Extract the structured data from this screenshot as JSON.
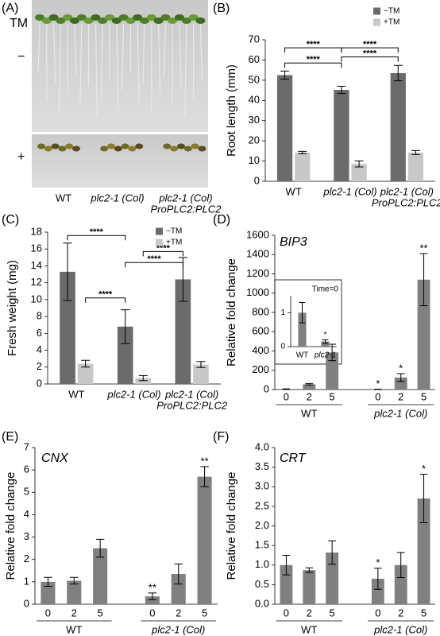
{
  "photo_panel": {
    "label": "(A)",
    "treatment": "TM",
    "rows": [
      "−",
      "+"
    ],
    "genotypes": [
      [
        "WT"
      ],
      [
        "plc2-1 (Col)"
      ],
      [
        "plc2-1 (Col)",
        "ProPLC2:PLC2"
      ]
    ]
  },
  "chart_data": [
    {
      "type": "bar",
      "label": "(B)",
      "ylabel": "Root length (mm)",
      "categories": [
        [
          "WT"
        ],
        [
          "plc2-1 (Col)"
        ],
        [
          "plc2-1 (Col)",
          "ProPLC2:PLC2"
        ]
      ],
      "series": [
        {
          "name": "−TM",
          "color": "#6b6b6b",
          "values": [
            52.5,
            45.2,
            53.5
          ],
          "errors": [
            2.0,
            1.8,
            3.8
          ]
        },
        {
          "name": "+TM",
          "color": "#c8c8c8",
          "values": [
            14.2,
            8.6,
            14.2
          ],
          "errors": [
            0.6,
            1.5,
            1.0
          ]
        }
      ],
      "ylim": [
        0,
        70
      ],
      "yticks": [
        0,
        10,
        20,
        30,
        40,
        50,
        60,
        70
      ],
      "legend": "upper right",
      "annotations": [
        "****",
        "****",
        "****",
        "****"
      ]
    },
    {
      "type": "bar",
      "label": "(C)",
      "ylabel": "Fresh weight (mg)",
      "categories": [
        [
          "WT"
        ],
        [
          "plc2-1 (Col)"
        ],
        [
          "plc2-1 (Col)",
          "ProPLC2:PLC2"
        ]
      ],
      "series": [
        {
          "name": "−TM",
          "color": "#6b6b6b",
          "values": [
            13.3,
            6.8,
            12.4
          ],
          "errors": [
            3.4,
            2.0,
            2.6
          ]
        },
        {
          "name": "+TM",
          "color": "#c8c8c8",
          "values": [
            2.4,
            0.7,
            2.3
          ],
          "errors": [
            0.4,
            0.3,
            0.35
          ]
        }
      ],
      "ylim": [
        0,
        18
      ],
      "yticks": [
        0,
        2,
        4,
        6,
        8,
        10,
        12,
        14,
        16,
        18
      ],
      "legend": "upper right",
      "annotations": [
        "****",
        "****",
        "****",
        "****"
      ]
    },
    {
      "type": "bar",
      "label": "(D)",
      "title": "BIP3",
      "ylabel": "Relative fold change",
      "categories": [
        "0",
        "2",
        "5",
        "0",
        "2",
        "5"
      ],
      "group_labels": [
        "WT",
        "plc2-1 (Col)"
      ],
      "values": [
        5,
        55,
        385,
        3,
        125,
        1140
      ],
      "errors": [
        2,
        8,
        85,
        1,
        40,
        270
      ],
      "significance": [
        null,
        null,
        null,
        "*",
        "*",
        "**"
      ],
      "color": "#808080",
      "ylim": [
        0,
        1600
      ],
      "yticks": [
        0,
        200,
        400,
        600,
        800,
        1000,
        1200,
        1400,
        1600
      ]
    },
    {
      "type": "bar",
      "title": "Time=0",
      "categories": [
        "WT",
        "plc2-1"
      ],
      "values": [
        1.0,
        0.15
      ],
      "errors": [
        0.3,
        0.05
      ],
      "significance": [
        null,
        "*"
      ],
      "color": "#808080",
      "ylim": [
        0,
        1.5
      ],
      "yticks": [
        0,
        1
      ]
    },
    {
      "type": "bar",
      "label": "(E)",
      "title": "CNX",
      "ylabel": "Relative fold change",
      "categories": [
        "0",
        "2",
        "5",
        "0",
        "2",
        "5"
      ],
      "group_labels": [
        "WT",
        "plc2-1 (Col)"
      ],
      "values": [
        1.0,
        1.05,
        2.5,
        0.35,
        1.35,
        5.7
      ],
      "errors": [
        0.2,
        0.15,
        0.4,
        0.15,
        0.45,
        0.45
      ],
      "significance": [
        null,
        null,
        null,
        "**",
        null,
        "**"
      ],
      "color": "#808080",
      "ylim": [
        0,
        7
      ],
      "yticks": [
        0,
        1,
        2,
        3,
        4,
        5,
        6,
        7
      ]
    },
    {
      "type": "bar",
      "label": "(F)",
      "title": "CRT",
      "ylabel": "Relative fold change",
      "categories": [
        "0",
        "2",
        "5",
        "0",
        "2",
        "5"
      ],
      "group_labels": [
        "WT",
        "plc2-1 (Col)"
      ],
      "values": [
        1.0,
        0.87,
        1.32,
        0.65,
        1.0,
        2.7
      ],
      "errors": [
        0.25,
        0.06,
        0.3,
        0.27,
        0.32,
        0.62
      ],
      "significance": [
        null,
        null,
        null,
        "*",
        null,
        "*"
      ],
      "color": "#808080",
      "ylim": [
        0,
        4
      ],
      "yticks": [
        {
          "value": 0,
          "label": "0.0"
        },
        {
          "value": 0.5,
          "label": "0.5"
        },
        {
          "value": 1,
          "label": "1.0"
        },
        {
          "value": 1.5,
          "label": "1.5"
        },
        {
          "value": 2,
          "label": "2.0"
        },
        {
          "value": 2.5,
          "label": "2.5"
        },
        {
          "value": 3,
          "label": "3.0"
        },
        {
          "value": 3.5,
          "label": "3.5"
        },
        {
          "value": 4,
          "label": "4.0"
        }
      ]
    }
  ]
}
